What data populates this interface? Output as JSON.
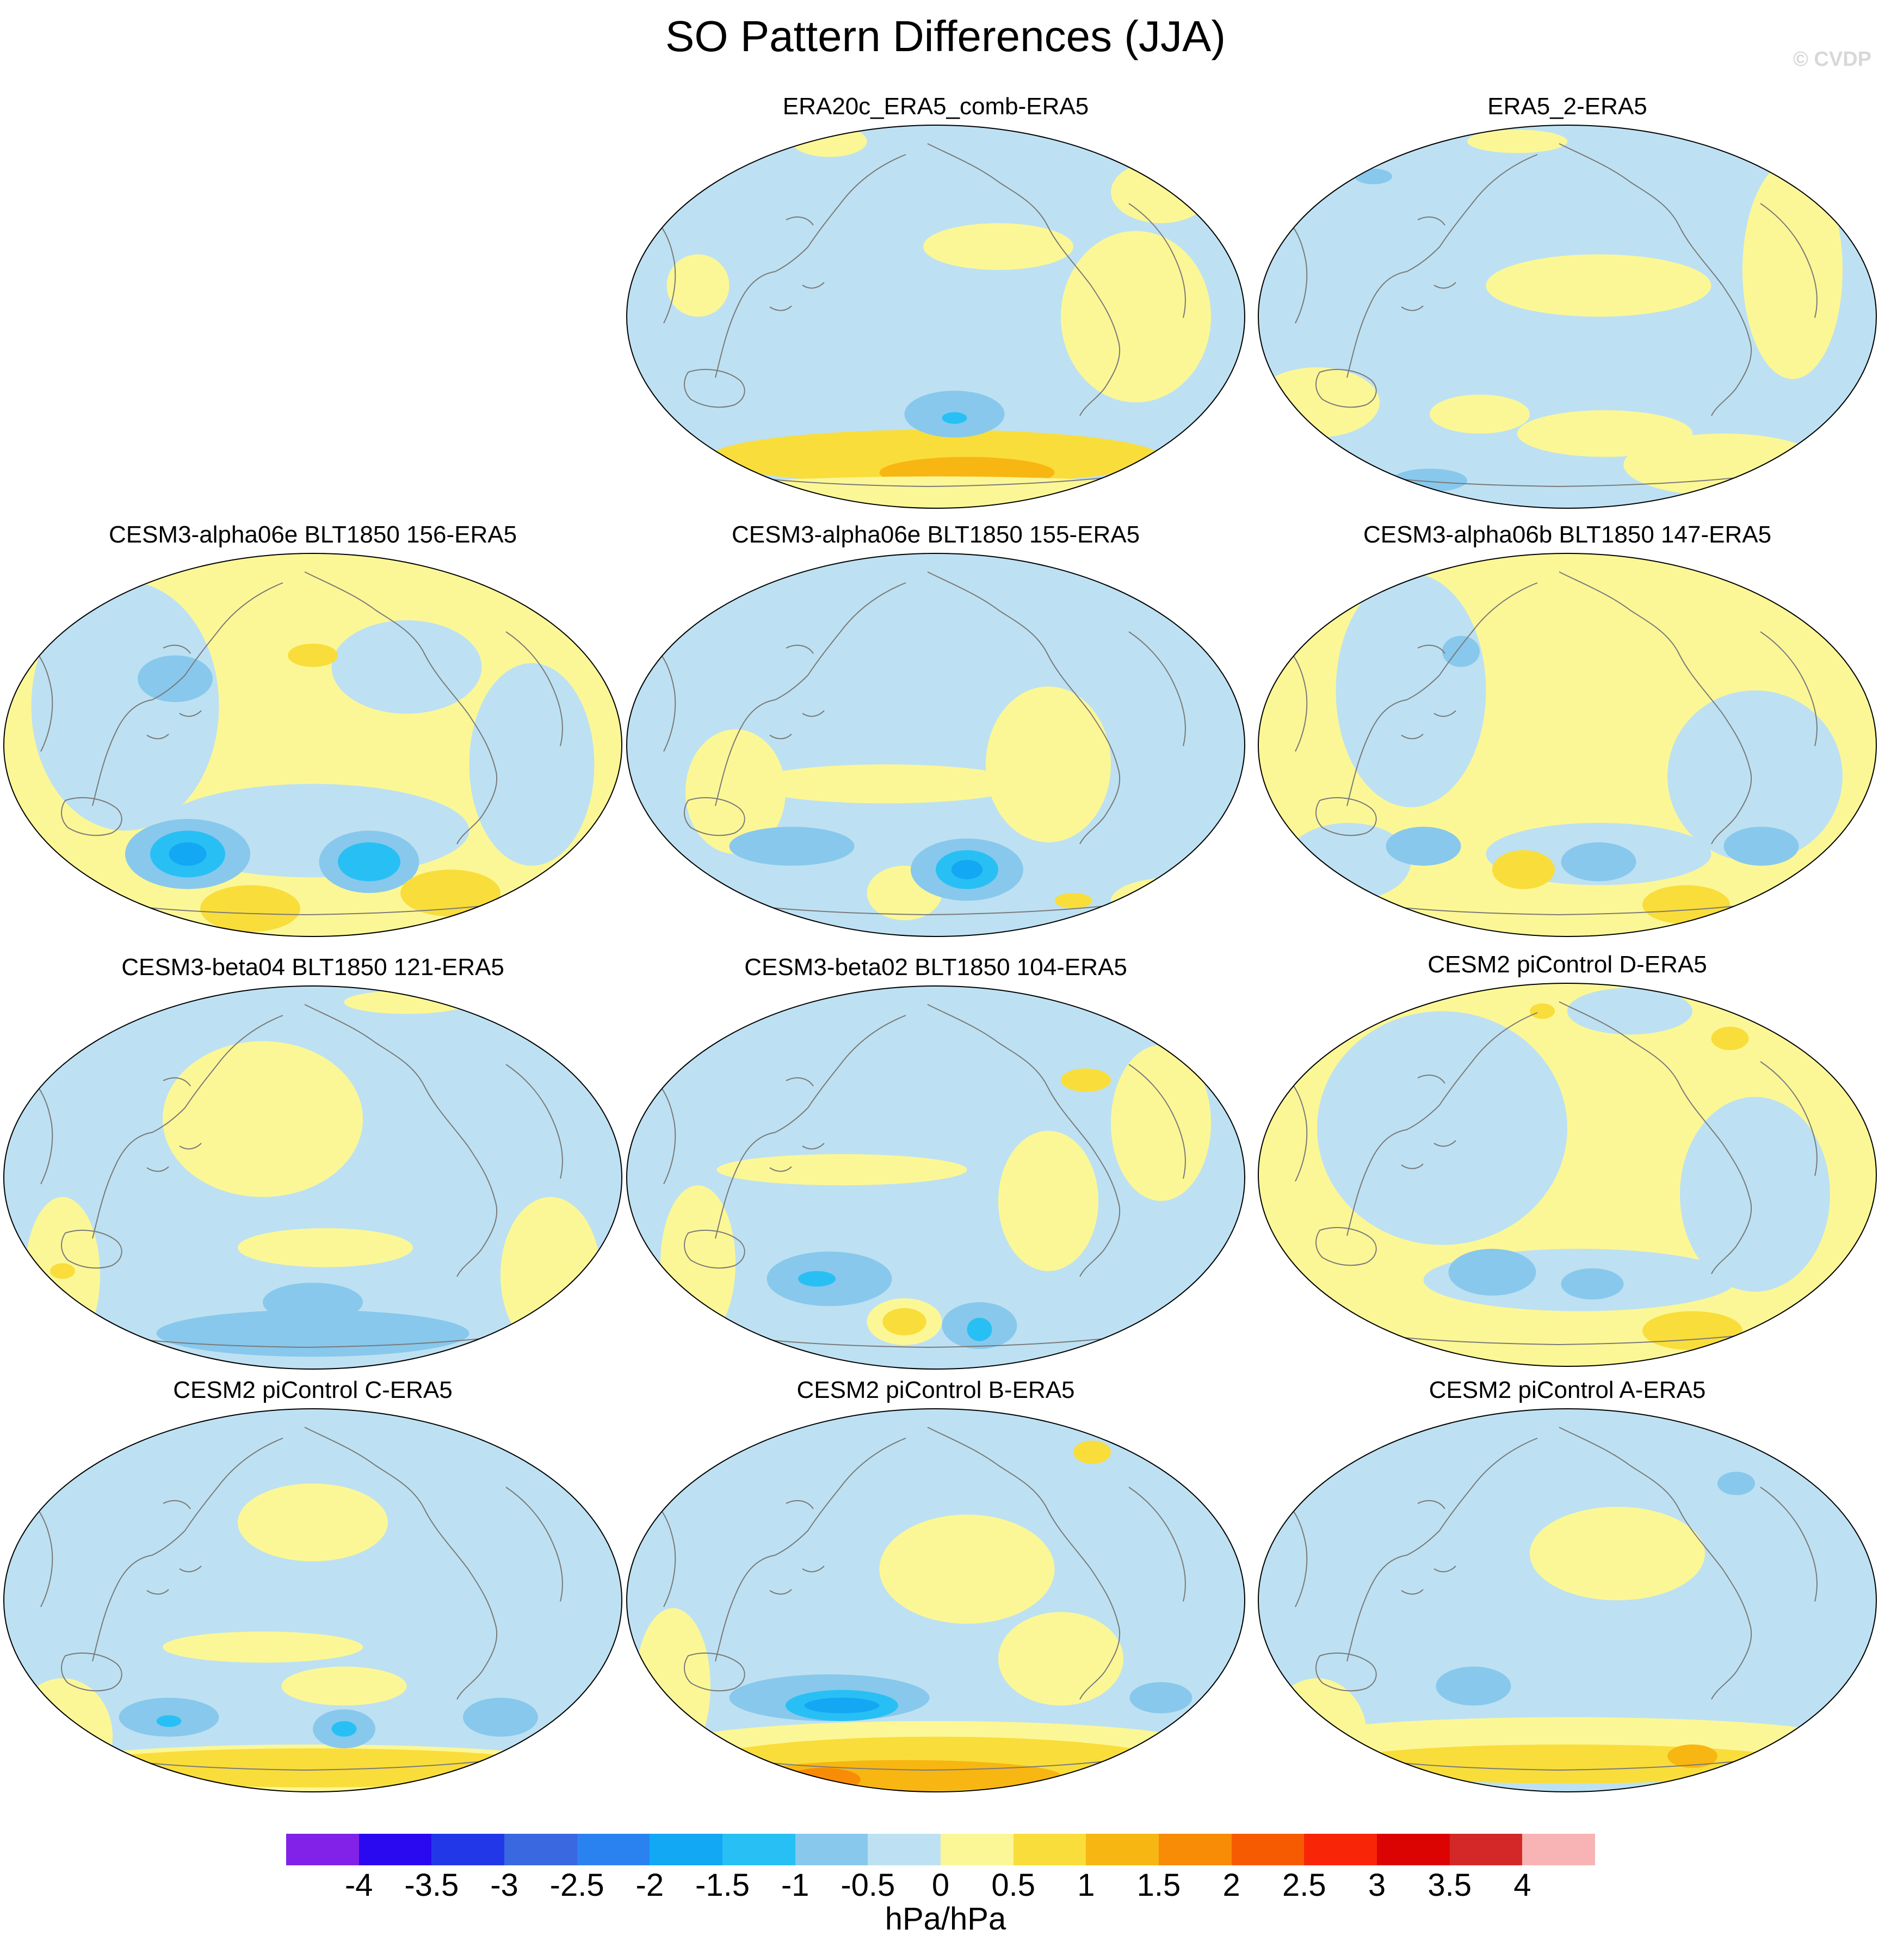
{
  "title": "SO Pattern Differences (JJA)",
  "credit": "© CVDP",
  "units": "hPa/hPa",
  "colors": {
    "c_m4": "#8222e8",
    "c_m35": "#2a08f0",
    "c_m3": "#2238e8",
    "c_m25": "#3a68e0",
    "c_m2": "#2a82f0",
    "c_m15": "#12a8f4",
    "c_m1": "#28c0f4",
    "c_m05": "#88c8ec",
    "c_0n": "#bde1f2",
    "c_0p": "#fcf796",
    "c_05": "#f9dd3b",
    "c_1": "#f8b612",
    "c_15": "#f88c06",
    "c_2": "#f65b02",
    "c_25": "#f82606",
    "c_3": "#dc0402",
    "c_35": "#d42828",
    "c_4": "#f8b4b4"
  },
  "colorbar": {
    "fill_colors": [
      "#8222e8",
      "#2a08f0",
      "#2238e8",
      "#3a68e0",
      "#2a82f0",
      "#12a8f4",
      "#28c0f4",
      "#88c8ec",
      "#bde1f2",
      "#fcf796",
      "#f9dd3b",
      "#f8b612",
      "#f88c06",
      "#f65b02",
      "#f82606",
      "#dc0402",
      "#d42828",
      "#f8b4b4"
    ],
    "labels": [
      "-4",
      "-3.5",
      "-3",
      "-2.5",
      "-2",
      "-1.5",
      "-1",
      "-0.5",
      "0",
      "0.5",
      "1",
      "1.5",
      "2",
      "2.5",
      "3",
      "3.5",
      "4"
    ]
  },
  "panels": [
    {
      "id": "era20c",
      "title": "ERA20c_ERA5_comb-ERA5",
      "base": "c_0n",
      "blobs": [
        [
          "c_05",
          0.5,
          0.86,
          0.36,
          0.07
        ],
        [
          "c_1",
          0.55,
          0.9,
          0.14,
          0.04
        ],
        [
          "c_0p",
          0.5,
          0.96,
          0.44,
          0.05
        ],
        [
          "c_m05",
          0.53,
          0.75,
          0.08,
          0.06
        ],
        [
          "c_m1",
          0.53,
          0.76,
          0.02,
          0.015
        ],
        [
          "c_0p",
          0.82,
          0.5,
          0.12,
          0.22
        ],
        [
          "c_0p",
          0.6,
          0.32,
          0.12,
          0.06
        ],
        [
          "c_0p",
          0.86,
          0.18,
          0.08,
          0.08
        ],
        [
          "c_0p",
          0.12,
          0.42,
          0.05,
          0.08
        ],
        [
          "c_0p",
          0.33,
          0.05,
          0.06,
          0.04
        ]
      ]
    },
    {
      "id": "era5-2",
      "title": "ERA5_2-ERA5",
      "base": "c_0n",
      "blobs": [
        [
          "c_0p",
          0.55,
          0.42,
          0.18,
          0.08
        ],
        [
          "c_0p",
          0.86,
          0.38,
          0.08,
          0.28
        ],
        [
          "c_0p",
          0.1,
          0.72,
          0.1,
          0.09
        ],
        [
          "c_0p",
          0.36,
          0.75,
          0.08,
          0.05
        ],
        [
          "c_0p",
          0.56,
          0.8,
          0.14,
          0.06
        ],
        [
          "c_0p",
          0.75,
          0.88,
          0.16,
          0.08
        ],
        [
          "c_0p",
          0.42,
          0.05,
          0.08,
          0.03
        ],
        [
          "c_m05",
          0.28,
          0.92,
          0.06,
          0.03
        ],
        [
          "c_m05",
          0.19,
          0.14,
          0.03,
          0.02
        ]
      ]
    },
    {
      "id": "alpha06e-156",
      "title": "CESM3-alpha06e BLT1850 156-ERA5",
      "base": "c_0p",
      "blobs": [
        [
          "c_0n",
          0.2,
          0.4,
          0.15,
          0.32
        ],
        [
          "c_0n",
          0.5,
          0.72,
          0.25,
          0.12
        ],
        [
          "c_0n",
          0.85,
          0.55,
          0.1,
          0.26
        ],
        [
          "c_0n",
          0.65,
          0.3,
          0.12,
          0.12
        ],
        [
          "c_m05",
          0.28,
          0.33,
          0.06,
          0.06
        ],
        [
          "c_m05",
          0.3,
          0.78,
          0.1,
          0.09
        ],
        [
          "c_m1",
          0.3,
          0.78,
          0.06,
          0.06
        ],
        [
          "c_m15",
          0.3,
          0.78,
          0.03,
          0.03
        ],
        [
          "c_m05",
          0.59,
          0.8,
          0.08,
          0.08
        ],
        [
          "c_m1",
          0.59,
          0.8,
          0.05,
          0.05
        ],
        [
          "c_05",
          0.4,
          0.92,
          0.08,
          0.06
        ],
        [
          "c_05",
          0.72,
          0.88,
          0.08,
          0.06
        ],
        [
          "c_05",
          0.5,
          0.27,
          0.04,
          0.03
        ]
      ]
    },
    {
      "id": "alpha06e-155",
      "title": "CESM3-alpha06e BLT1850 155-ERA5",
      "base": "c_0n",
      "blobs": [
        [
          "c_0p",
          0.68,
          0.55,
          0.1,
          0.2
        ],
        [
          "c_0p",
          0.18,
          0.62,
          0.08,
          0.16
        ],
        [
          "c_0p",
          0.42,
          0.6,
          0.22,
          0.05
        ],
        [
          "c_0p",
          0.45,
          0.88,
          0.06,
          0.07
        ],
        [
          "c_0p",
          0.88,
          0.9,
          0.1,
          0.06
        ],
        [
          "c_m05",
          0.55,
          0.82,
          0.09,
          0.08
        ],
        [
          "c_m1",
          0.55,
          0.82,
          0.05,
          0.05
        ],
        [
          "c_m15",
          0.55,
          0.82,
          0.025,
          0.025
        ],
        [
          "c_m05",
          0.27,
          0.76,
          0.1,
          0.05
        ],
        [
          "c_05",
          0.72,
          0.9,
          0.03,
          0.02
        ]
      ]
    },
    {
      "id": "alpha06b-147",
      "title": "CESM3-alpha06b BLT1850 147-ERA5",
      "base": "c_0p",
      "blobs": [
        [
          "c_0n",
          0.25,
          0.36,
          0.12,
          0.3
        ],
        [
          "c_0n",
          0.8,
          0.58,
          0.14,
          0.22
        ],
        [
          "c_0n",
          0.55,
          0.78,
          0.18,
          0.08
        ],
        [
          "c_0n",
          0.15,
          0.8,
          0.1,
          0.1
        ],
        [
          "c_m05",
          0.27,
          0.76,
          0.06,
          0.05
        ],
        [
          "c_m05",
          0.55,
          0.8,
          0.06,
          0.05
        ],
        [
          "c_m05",
          0.81,
          0.76,
          0.06,
          0.05
        ],
        [
          "c_05",
          0.43,
          0.82,
          0.05,
          0.05
        ],
        [
          "c_05",
          0.69,
          0.91,
          0.07,
          0.05
        ],
        [
          "c_m05",
          0.33,
          0.26,
          0.03,
          0.04
        ]
      ]
    },
    {
      "id": "beta04-121",
      "title": "CESM3-beta04 BLT1850 121-ERA5",
      "base": "c_0n",
      "blobs": [
        [
          "c_0p",
          0.42,
          0.35,
          0.16,
          0.2
        ],
        [
          "c_0p",
          0.1,
          0.75,
          0.06,
          0.2
        ],
        [
          "c_0p",
          0.52,
          0.68,
          0.14,
          0.05
        ],
        [
          "c_0p",
          0.88,
          0.75,
          0.08,
          0.2
        ],
        [
          "c_0p",
          0.65,
          0.05,
          0.1,
          0.03
        ],
        [
          "c_m05",
          0.5,
          0.9,
          0.25,
          0.06
        ],
        [
          "c_m05",
          0.5,
          0.82,
          0.08,
          0.05
        ],
        [
          "c_05",
          0.1,
          0.74,
          0.02,
          0.02
        ]
      ]
    },
    {
      "id": "beta02-104",
      "title": "CESM3-beta02 BLT1850 104-ERA5",
      "base": "c_0n",
      "blobs": [
        [
          "c_0p",
          0.35,
          0.48,
          0.2,
          0.04
        ],
        [
          "c_0p",
          0.68,
          0.56,
          0.08,
          0.18
        ],
        [
          "c_0p",
          0.86,
          0.36,
          0.08,
          0.2
        ],
        [
          "c_0p",
          0.12,
          0.72,
          0.06,
          0.2
        ],
        [
          "c_0p",
          0.45,
          0.87,
          0.06,
          0.06
        ],
        [
          "c_m05",
          0.33,
          0.76,
          0.1,
          0.07
        ],
        [
          "c_m1",
          0.31,
          0.76,
          0.03,
          0.02
        ],
        [
          "c_05",
          0.45,
          0.87,
          0.035,
          0.035
        ],
        [
          "c_m05",
          0.57,
          0.88,
          0.06,
          0.06
        ],
        [
          "c_m1",
          0.57,
          0.89,
          0.02,
          0.03
        ],
        [
          "c_05",
          0.74,
          0.25,
          0.04,
          0.03
        ]
      ]
    },
    {
      "id": "cesm2-d",
      "title": "CESM2 piControl D-ERA5",
      "base": "c_0p",
      "blobs": [
        [
          "c_0n",
          0.3,
          0.38,
          0.2,
          0.3
        ],
        [
          "c_0n",
          0.8,
          0.55,
          0.12,
          0.25
        ],
        [
          "c_0n",
          0.52,
          0.77,
          0.25,
          0.08
        ],
        [
          "c_0n",
          0.6,
          0.08,
          0.1,
          0.06
        ],
        [
          "c_m05",
          0.38,
          0.75,
          0.07,
          0.06
        ],
        [
          "c_m05",
          0.54,
          0.78,
          0.05,
          0.04
        ],
        [
          "c_05",
          0.7,
          0.9,
          0.08,
          0.05
        ],
        [
          "c_05",
          0.76,
          0.15,
          0.03,
          0.03
        ],
        [
          "c_05",
          0.46,
          0.08,
          0.02,
          0.02
        ]
      ]
    },
    {
      "id": "cesm2-c",
      "title": "CESM2 piControl C-ERA5",
      "base": "c_0n",
      "blobs": [
        [
          "c_0p",
          0.5,
          0.3,
          0.12,
          0.1
        ],
        [
          "c_0p",
          0.42,
          0.62,
          0.16,
          0.04
        ],
        [
          "c_0p",
          0.55,
          0.72,
          0.1,
          0.05
        ],
        [
          "c_0p",
          0.1,
          0.85,
          0.08,
          0.15
        ],
        [
          "c_0p",
          0.5,
          0.93,
          0.45,
          0.06
        ],
        [
          "c_05",
          0.5,
          0.93,
          0.4,
          0.05
        ],
        [
          "c_m05",
          0.27,
          0.8,
          0.08,
          0.05
        ],
        [
          "c_m05",
          0.55,
          0.83,
          0.05,
          0.05
        ],
        [
          "c_m1",
          0.55,
          0.83,
          0.02,
          0.02
        ],
        [
          "c_m05",
          0.8,
          0.8,
          0.06,
          0.05
        ],
        [
          "c_m1",
          0.27,
          0.81,
          0.02,
          0.015
        ]
      ]
    },
    {
      "id": "cesm2-b",
      "title": "CESM2 piControl B-ERA5",
      "base": "c_0n",
      "blobs": [
        [
          "c_0p",
          0.55,
          0.42,
          0.14,
          0.14
        ],
        [
          "c_0p",
          0.08,
          0.72,
          0.06,
          0.2
        ],
        [
          "c_0p",
          0.7,
          0.65,
          0.1,
          0.12
        ],
        [
          "c_0p",
          0.5,
          0.87,
          0.42,
          0.06
        ],
        [
          "c_05",
          0.5,
          0.92,
          0.38,
          0.07
        ],
        [
          "c_1",
          0.45,
          0.95,
          0.25,
          0.04
        ],
        [
          "c_15",
          0.32,
          0.96,
          0.06,
          0.03
        ],
        [
          "c_m05",
          0.33,
          0.75,
          0.16,
          0.06
        ],
        [
          "c_m1",
          0.35,
          0.77,
          0.09,
          0.04
        ],
        [
          "c_m15",
          0.35,
          0.77,
          0.06,
          0.02
        ],
        [
          "c_m05",
          0.86,
          0.75,
          0.05,
          0.04
        ],
        [
          "c_05",
          0.75,
          0.12,
          0.03,
          0.03
        ]
      ]
    },
    {
      "id": "cesm2-a",
      "title": "CESM2 piControl A-ERA5",
      "base": "c_0n",
      "blobs": [
        [
          "c_0p",
          0.58,
          0.38,
          0.14,
          0.12
        ],
        [
          "c_0p",
          0.1,
          0.85,
          0.08,
          0.15
        ],
        [
          "c_0p",
          0.5,
          0.86,
          0.45,
          0.06
        ],
        [
          "c_05",
          0.5,
          0.92,
          0.38,
          0.05
        ],
        [
          "c_1",
          0.7,
          0.9,
          0.04,
          0.03
        ],
        [
          "c_m05",
          0.35,
          0.72,
          0.06,
          0.05
        ],
        [
          "c_m05",
          0.77,
          0.2,
          0.03,
          0.03
        ]
      ]
    }
  ]
}
